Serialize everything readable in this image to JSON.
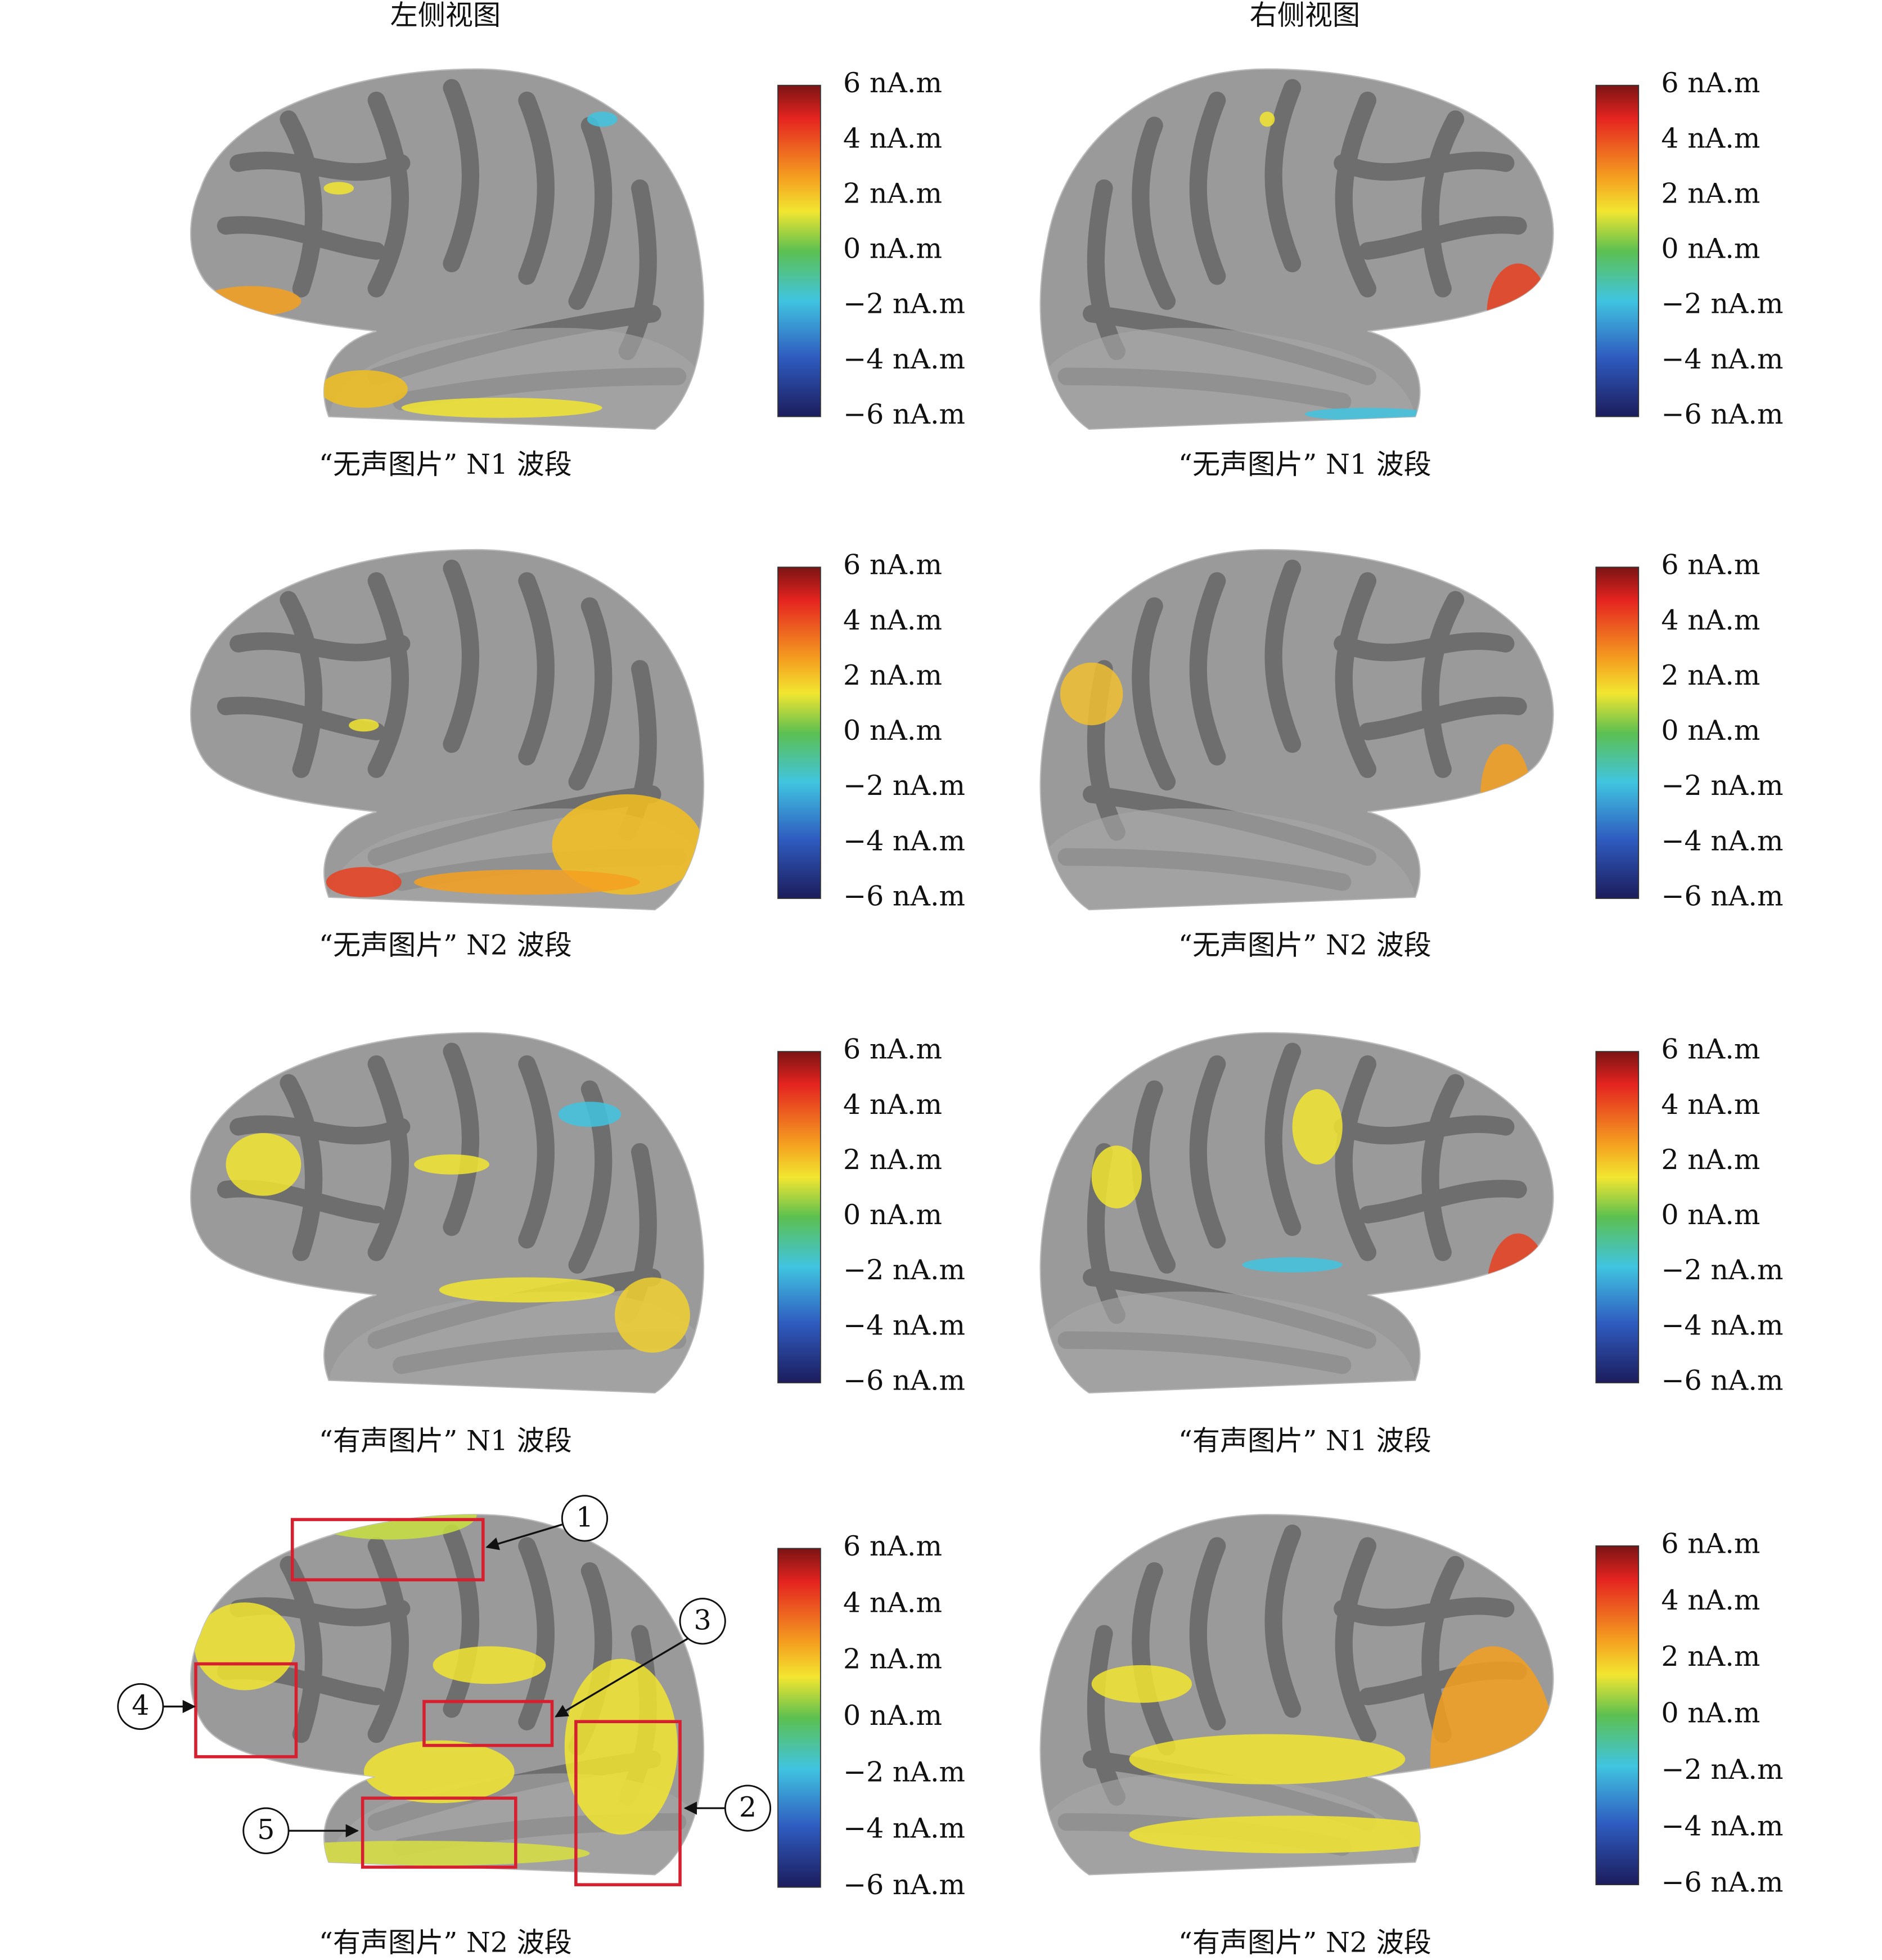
{
  "headers": [
    "左侧视图",
    "右侧视图"
  ],
  "colorbar": {
    "labels": [
      "6 nA.m",
      "4 nA.m",
      "2 nA.m",
      "0 nA.m",
      "−2 nA.m",
      "−4 nA.m",
      "−6 nA.m"
    ]
  },
  "panels": [
    {
      "caption": "“无声图片” N1 波段"
    },
    {
      "caption": "“无声图片” N1 波段"
    },
    {
      "caption": "“无声图片” N2 波段"
    },
    {
      "caption": "“无声图片” N2 波段"
    },
    {
      "caption": "“有声图片” N1 波段"
    },
    {
      "caption": "“有声图片” N1 波段"
    },
    {
      "caption": "“有声图片” N2 波段"
    },
    {
      "caption": "“有声图片” N2 波段"
    }
  ],
  "callouts": [
    "1",
    "2",
    "3",
    "4",
    "5"
  ]
}
